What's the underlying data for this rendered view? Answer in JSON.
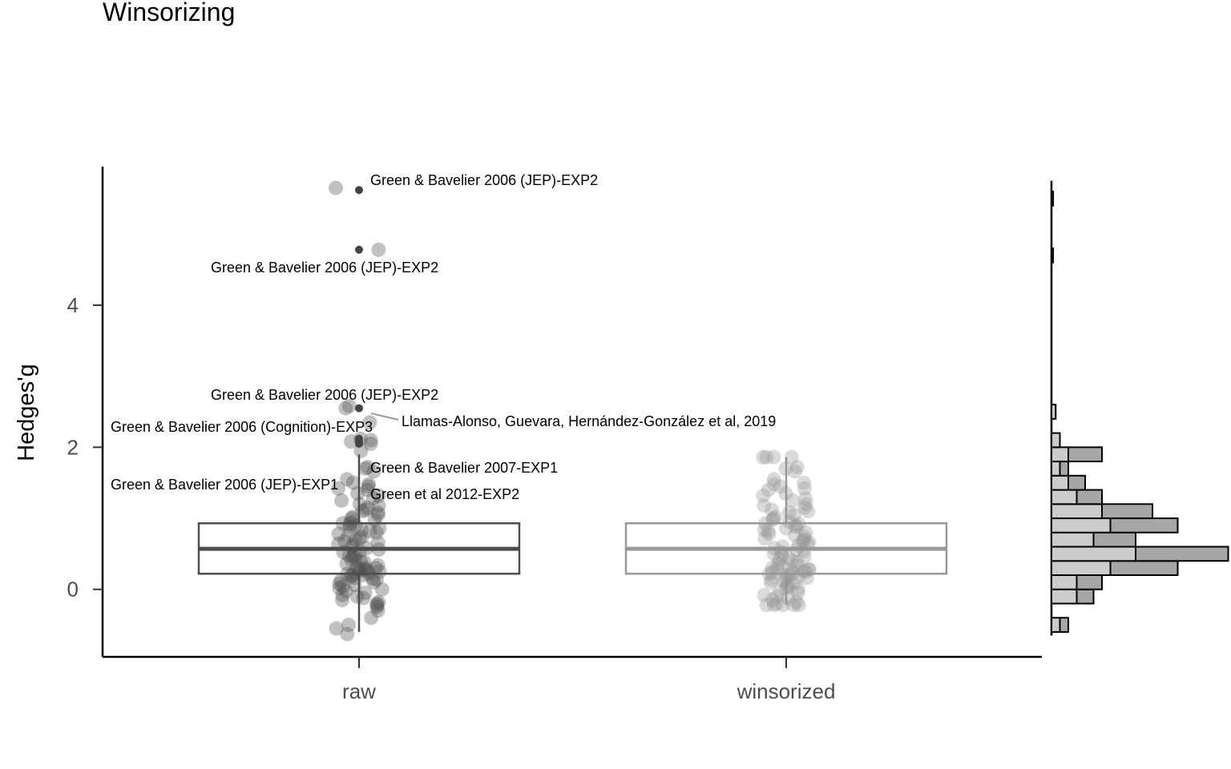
{
  "chart_data": {
    "type": "boxplot",
    "title": "Winsorizing",
    "ylabel": "Hedges'g",
    "xlabel": "",
    "ylim": [
      -0.95,
      5.95
    ],
    "yticks": [
      0,
      2,
      4
    ],
    "grid": false,
    "legend": "none",
    "categories": [
      "raw",
      "winsorized"
    ],
    "series": [
      {
        "category": "raw",
        "color": "#4d4d4d",
        "box": {
          "q1": 0.22,
          "median": 0.57,
          "q3": 0.93,
          "whisker_low": -0.6,
          "whisker_high": 1.9
        },
        "points": [
          5.65,
          4.78,
          2.58,
          2.55,
          2.35,
          2.12,
          2.08,
          2.05,
          2.1,
          1.95,
          1.72,
          1.7,
          1.66,
          1.55,
          1.5,
          1.48,
          1.45,
          1.42,
          1.4,
          1.35,
          1.32,
          1.28,
          1.25,
          1.2,
          1.18,
          1.15,
          1.12,
          1.1,
          1.08,
          1.05,
          1.02,
          1.0,
          0.98,
          0.95,
          0.93,
          0.92,
          0.9,
          0.88,
          0.86,
          0.84,
          0.82,
          0.8,
          0.78,
          0.76,
          0.74,
          0.72,
          0.7,
          0.68,
          0.66,
          0.64,
          0.62,
          0.6,
          0.58,
          0.56,
          0.54,
          0.52,
          0.5,
          0.48,
          0.46,
          0.44,
          0.42,
          0.4,
          0.38,
          0.36,
          0.34,
          0.32,
          0.3,
          0.3,
          0.28,
          0.28,
          0.26,
          0.26,
          0.25,
          0.24,
          0.22,
          0.22,
          0.2,
          0.2,
          0.18,
          0.16,
          0.15,
          0.14,
          0.12,
          0.1,
          0.08,
          0.06,
          0.04,
          0.02,
          0.0,
          -0.02,
          -0.05,
          -0.08,
          -0.1,
          -0.12,
          -0.15,
          -0.18,
          -0.2,
          -0.22,
          -0.25,
          -0.3,
          -0.4,
          -0.5,
          -0.55,
          -0.63
        ]
      },
      {
        "category": "winsorized",
        "color": "#999999",
        "box": {
          "q1": 0.22,
          "median": 0.57,
          "q3": 0.93,
          "whisker_low": -0.22,
          "whisker_high": 1.86
        },
        "points": [
          1.86,
          1.86,
          1.86,
          1.86,
          1.72,
          1.7,
          1.66,
          1.55,
          1.5,
          1.48,
          1.45,
          1.42,
          1.4,
          1.35,
          1.32,
          1.28,
          1.25,
          1.2,
          1.18,
          1.15,
          1.12,
          1.1,
          1.08,
          1.05,
          1.02,
          1.0,
          0.98,
          0.95,
          0.93,
          0.92,
          0.9,
          0.88,
          0.86,
          0.84,
          0.82,
          0.8,
          0.78,
          0.76,
          0.74,
          0.72,
          0.7,
          0.68,
          0.66,
          0.64,
          0.62,
          0.6,
          0.58,
          0.56,
          0.54,
          0.52,
          0.5,
          0.48,
          0.46,
          0.44,
          0.42,
          0.4,
          0.38,
          0.36,
          0.34,
          0.32,
          0.3,
          0.3,
          0.28,
          0.28,
          0.26,
          0.26,
          0.25,
          0.24,
          0.22,
          0.22,
          0.2,
          0.2,
          0.18,
          0.16,
          0.15,
          0.14,
          0.12,
          0.1,
          0.08,
          0.06,
          0.04,
          0.02,
          0.0,
          -0.02,
          -0.05,
          -0.08,
          -0.1,
          -0.12,
          -0.15,
          -0.18,
          -0.2,
          -0.22,
          -0.22,
          -0.22,
          -0.22,
          -0.22
        ]
      }
    ],
    "annotations": [
      {
        "text": "Green & Bavelier 2006 (JEP)-EXP2",
        "y": 5.62
      },
      {
        "text": "Green & Bavelier 2006 (JEP)-EXP2",
        "y": 4.78
      },
      {
        "text": "Green & Bavelier 2006 (JEP)-EXP2",
        "y": 2.55
      },
      {
        "text": "Llamas-Alonso, Guevara, Hernández-González et al, 2019",
        "y": 2.55
      },
      {
        "text": "Green & Bavelier 2006 (Cognition)-EXP3",
        "y": 2.32
      },
      {
        "text": "Green & Bavelier 2007-EXP1",
        "y": 2.05
      },
      {
        "text": "Green & Bavelier 2006 (JEP)-EXP1",
        "y": 1.7
      },
      {
        "text": "Green et al 2012-EXP2",
        "y": 1.4
      }
    ],
    "marginal_histogram": {
      "bin_width": 0.2,
      "bins": [
        {
          "y0": -0.6,
          "raw": 1,
          "winsorized": 1
        },
        {
          "y0": -0.4,
          "raw": 0,
          "winsorized": 0
        },
        {
          "y0": -0.2,
          "raw": 3,
          "winsorized": 2
        },
        {
          "y0": 0.0,
          "raw": 3,
          "winsorized": 3
        },
        {
          "y0": 0.2,
          "raw": 7,
          "winsorized": 8
        },
        {
          "y0": 0.4,
          "raw": 10,
          "winsorized": 11
        },
        {
          "y0": 0.6,
          "raw": 5,
          "winsorized": 5
        },
        {
          "y0": 0.8,
          "raw": 7,
          "winsorized": 8
        },
        {
          "y0": 1.0,
          "raw": 6,
          "winsorized": 6
        },
        {
          "y0": 1.2,
          "raw": 3,
          "winsorized": 3
        },
        {
          "y0": 1.4,
          "raw": 2,
          "winsorized": 2
        },
        {
          "y0": 1.6,
          "raw": 1,
          "winsorized": 1
        },
        {
          "y0": 1.8,
          "raw": 2,
          "winsorized": 4
        },
        {
          "y0": 2.0,
          "raw": 1,
          "winsorized": 0
        },
        {
          "y0": 2.4,
          "raw": 0.5,
          "winsorized": 0
        },
        {
          "y0": 4.6,
          "raw": 0.2,
          "winsorized": 0
        },
        {
          "y0": 5.4,
          "raw": 0.2,
          "winsorized": 0
        }
      ]
    }
  }
}
